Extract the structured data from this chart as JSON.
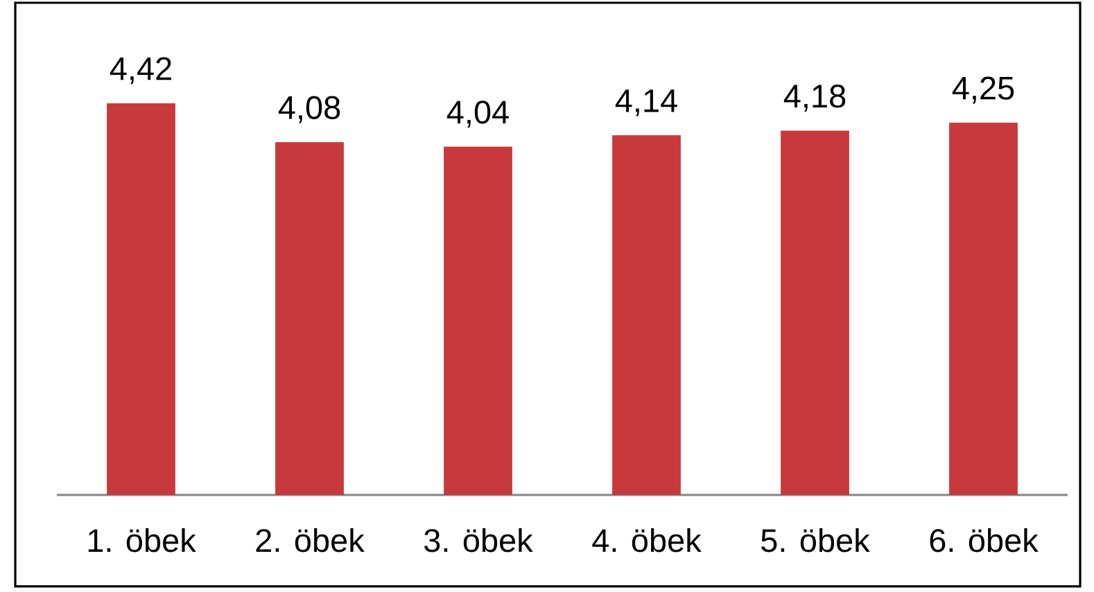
{
  "chart_data": {
    "type": "bar",
    "categories": [
      "1. öbek",
      "2. öbek",
      "3. öbek",
      "4. öbek",
      "5. öbek",
      "6. öbek"
    ],
    "values": [
      4.42,
      4.08,
      4.04,
      4.14,
      4.18,
      4.25
    ],
    "value_labels": [
      "4,42",
      "4,08",
      "4,04",
      "4,14",
      "4,18",
      "4,25"
    ],
    "color": "#c8393b",
    "ylim": [
      1,
      5.3
    ],
    "tick_labels": "x"
  }
}
